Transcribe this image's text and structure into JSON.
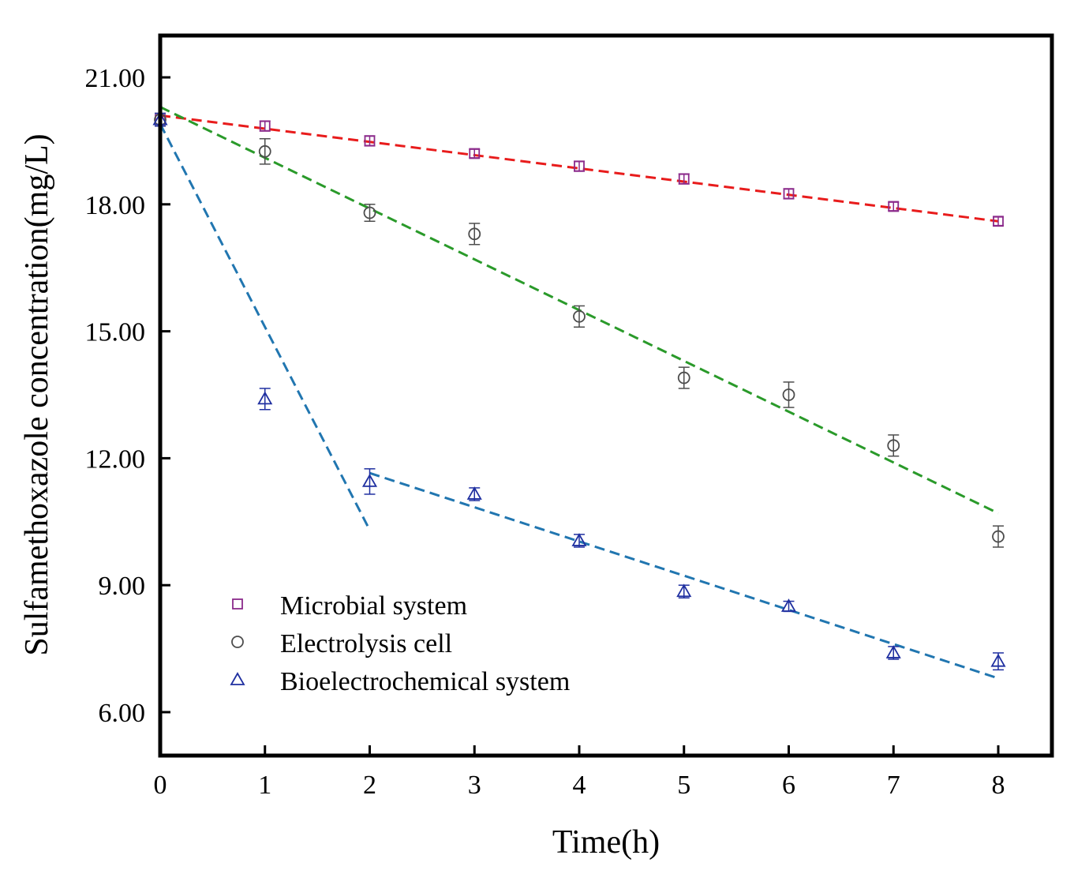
{
  "chart_data": {
    "type": "scatter",
    "title": "",
    "xlabel": "Time(h)",
    "ylabel": "Sulfamethoxazole concentration(mg/L)",
    "xlim": [
      0,
      8.5
    ],
    "ylim": [
      5.0,
      22.0
    ],
    "xticks": [
      0,
      1,
      2,
      3,
      4,
      5,
      6,
      7,
      8
    ],
    "xtick_labels": [
      "0",
      "1",
      "2",
      "3",
      "4",
      "5",
      "6",
      "7",
      "8"
    ],
    "yticks": [
      6,
      9,
      12,
      15,
      18,
      21
    ],
    "ytick_labels": [
      "6.00",
      "9.00",
      "12.00",
      "15.00",
      "18.00",
      "21.00"
    ],
    "legend_position": "bottom-left",
    "series": [
      {
        "name": "Microbial system",
        "marker": "square",
        "marker_color": "#8b2a8b",
        "x": [
          0,
          1,
          2,
          3,
          4,
          5,
          6,
          7,
          8
        ],
        "y": [
          20.0,
          19.85,
          19.5,
          19.2,
          18.9,
          18.6,
          18.25,
          17.95,
          17.6
        ],
        "err": [
          0.15,
          0.12,
          0.12,
          0.1,
          0.12,
          0.12,
          0.12,
          0.1,
          0.1
        ],
        "fits": [
          {
            "x": [
              0,
              8
            ],
            "y": [
              20.1,
              17.6
            ],
            "color": "#e81c1c"
          }
        ]
      },
      {
        "name": "Electrolysis cell",
        "marker": "circle",
        "marker_color": "#4d4d4d",
        "x": [
          0,
          1,
          2,
          3,
          4,
          5,
          6,
          7,
          8
        ],
        "y": [
          20.0,
          19.25,
          17.8,
          17.3,
          15.35,
          13.9,
          13.5,
          12.3,
          10.15
        ],
        "err": [
          0.15,
          0.3,
          0.2,
          0.25,
          0.25,
          0.25,
          0.3,
          0.25,
          0.25
        ],
        "fits": [
          {
            "x": [
              0,
              8
            ],
            "y": [
              20.3,
              10.7
            ],
            "color": "#2a9a2a"
          }
        ]
      },
      {
        "name": "Bioelectrochemical system",
        "marker": "triangle",
        "marker_color": "#1f2fa0",
        "x": [
          0,
          1,
          2,
          3,
          4,
          5,
          6,
          7,
          8
        ],
        "y": [
          20.0,
          13.4,
          11.45,
          11.15,
          10.05,
          8.85,
          8.5,
          7.4,
          7.2
        ],
        "err": [
          0.15,
          0.25,
          0.3,
          0.15,
          0.15,
          0.15,
          0.12,
          0.15,
          0.2
        ],
        "fits": [
          {
            "x": [
              0,
              1.98
            ],
            "y": [
              19.9,
              10.4
            ],
            "color": "#2176b0"
          },
          {
            "x": [
              2,
              8
            ],
            "y": [
              11.65,
              6.8
            ],
            "color": "#2176b0"
          }
        ]
      }
    ]
  }
}
